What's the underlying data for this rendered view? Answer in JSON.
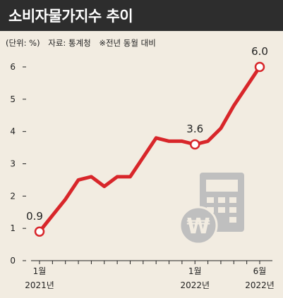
{
  "header": {
    "title": "소비자물가지수 추이"
  },
  "meta": {
    "unit": "(단위: %)",
    "source": "자료: 통계청",
    "note": "※전년 동월 대비"
  },
  "colors": {
    "line": "#d8262a",
    "title_bg": "#2d2d2d",
    "background": "#f2ece1",
    "icon": "#bfbfbf"
  },
  "icons": [
    "calculator-icon",
    "won-coin-icon"
  ],
  "chart_data": {
    "type": "line",
    "title": "소비자물가지수 추이",
    "xlabel": "",
    "ylabel": "",
    "ylim": [
      0,
      6.5
    ],
    "yticks": [
      0,
      1,
      2,
      3,
      4,
      5,
      6
    ],
    "grid": false,
    "x": [
      "2021-01",
      "2021-02",
      "2021-03",
      "2021-04",
      "2021-05",
      "2021-06",
      "2021-07",
      "2021-08",
      "2021-09",
      "2021-10",
      "2021-11",
      "2021-12",
      "2022-01",
      "2022-02",
      "2022-03",
      "2022-04",
      "2022-05",
      "2022-06"
    ],
    "series": [
      {
        "values": [
          0.9,
          1.4,
          1.9,
          2.5,
          2.6,
          2.3,
          2.6,
          2.6,
          3.2,
          3.8,
          3.7,
          3.7,
          3.6,
          3.7,
          4.1,
          4.8,
          5.4,
          6.0
        ]
      }
    ],
    "x_tick_labels": [
      {
        "index": 0,
        "line1": "1월",
        "line2": "2021년"
      },
      {
        "index": 12,
        "line1": "1월",
        "line2": "2022년"
      },
      {
        "index": 17,
        "line1": "6월",
        "line2": "2022년"
      }
    ],
    "annotations": [
      {
        "index": 0,
        "text": "0.9"
      },
      {
        "index": 12,
        "text": "3.6"
      },
      {
        "index": 17,
        "text": "6.0"
      }
    ]
  }
}
